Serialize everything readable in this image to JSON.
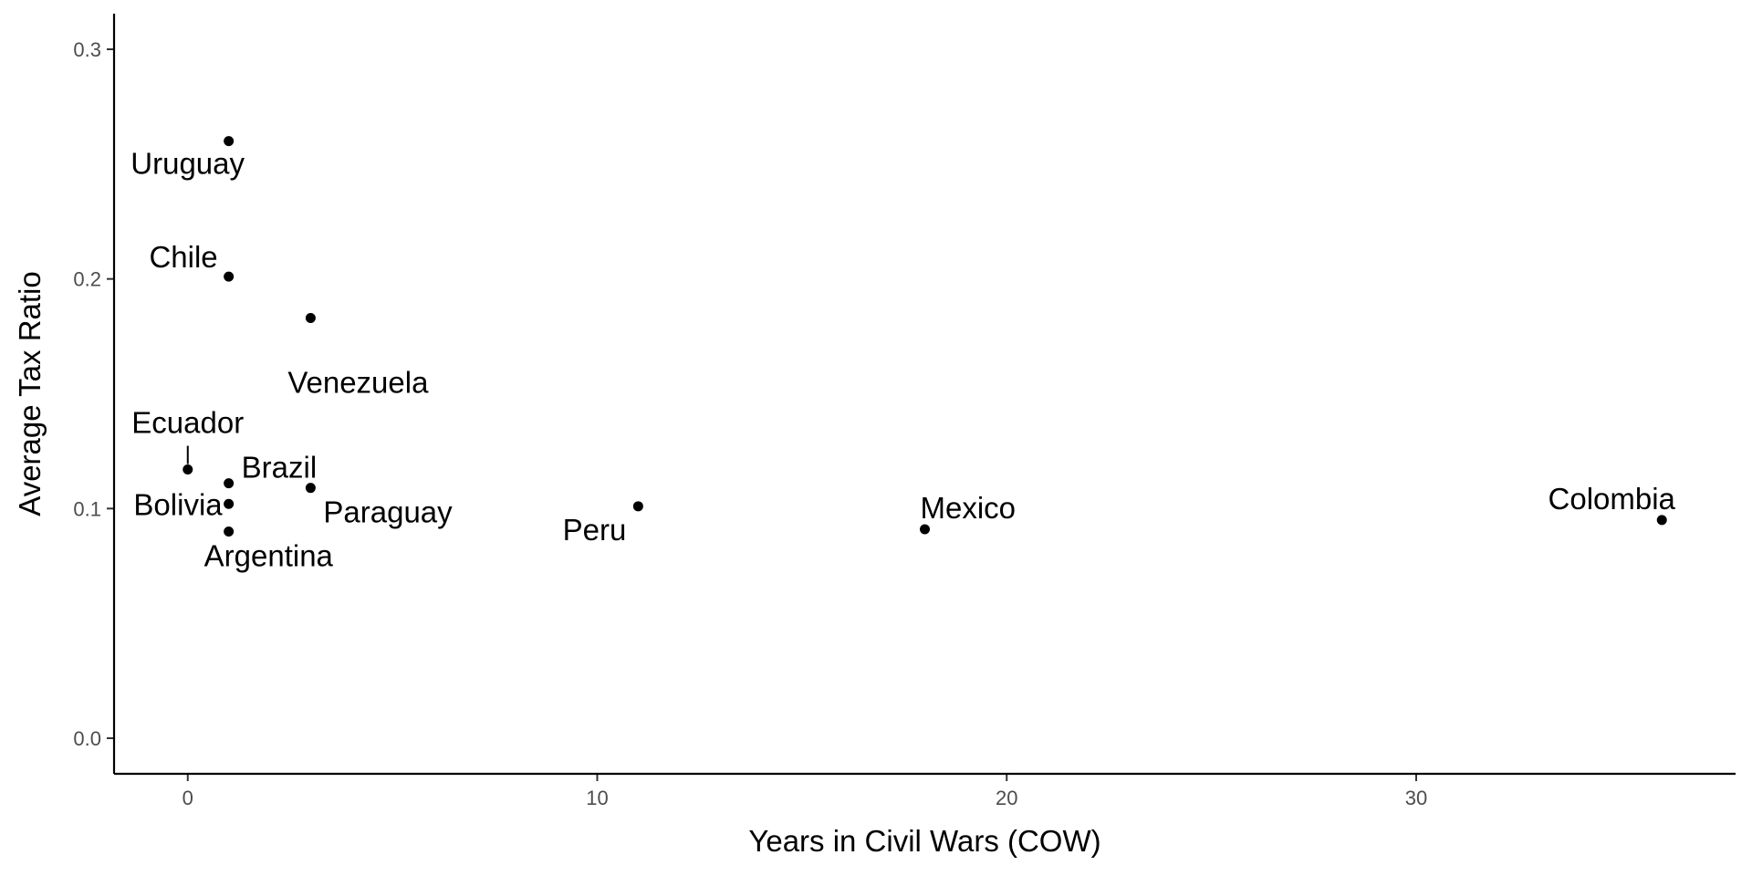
{
  "chart_data": {
    "type": "scatter",
    "xlabel": "Years in Civil Wars (COW)",
    "ylabel": "Average Tax Ratio",
    "xlim": [
      -1.8,
      37.8
    ],
    "ylim": [
      -0.0155,
      0.3155
    ],
    "xticks": [
      0,
      10,
      20,
      30
    ],
    "yticks": [
      0.0,
      0.1,
      0.2,
      0.3
    ],
    "xtick_labels": [
      "0",
      "10",
      "20",
      "30"
    ],
    "ytick_labels": [
      "0.0",
      "0.1",
      "0.2",
      "0.3"
    ],
    "grid": false,
    "legend": "none",
    "points": [
      {
        "label": "Uruguay",
        "x": 1,
        "y": 0.26
      },
      {
        "label": "Chile",
        "x": 1,
        "y": 0.201
      },
      {
        "label": "Venezuela",
        "x": 3,
        "y": 0.183
      },
      {
        "label": "Ecuador",
        "x": 0,
        "y": 0.117
      },
      {
        "label": "Brazil",
        "x": 1,
        "y": 0.111
      },
      {
        "label": "Bolivia",
        "x": 1,
        "y": 0.102
      },
      {
        "label": "Paraguay",
        "x": 3,
        "y": 0.109
      },
      {
        "label": "Argentina",
        "x": 1,
        "y": 0.09
      },
      {
        "label": "Peru",
        "x": 11,
        "y": 0.101
      },
      {
        "label": "Mexico",
        "x": 18,
        "y": 0.091
      },
      {
        "label": "Colombia",
        "x": 36,
        "y": 0.095
      }
    ]
  }
}
